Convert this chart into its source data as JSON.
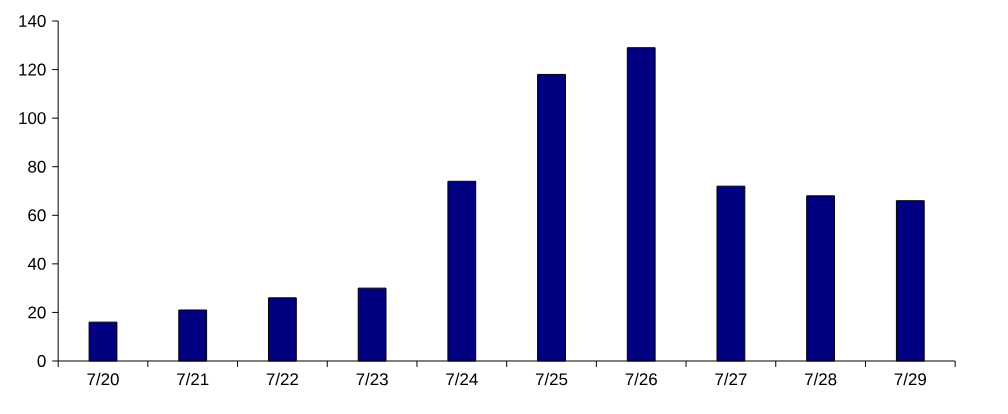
{
  "chart_data": {
    "type": "bar",
    "categories": [
      "7/20",
      "7/21",
      "7/22",
      "7/23",
      "7/24",
      "7/25",
      "7/26",
      "7/27",
      "7/28",
      "7/29"
    ],
    "values": [
      16,
      21,
      26,
      30,
      74,
      118,
      129,
      72,
      68,
      66
    ],
    "color": "#000080",
    "ylim": [
      0,
      140
    ],
    "yticks": [
      0,
      20,
      40,
      60,
      80,
      100,
      120,
      140
    ],
    "grid": false
  }
}
